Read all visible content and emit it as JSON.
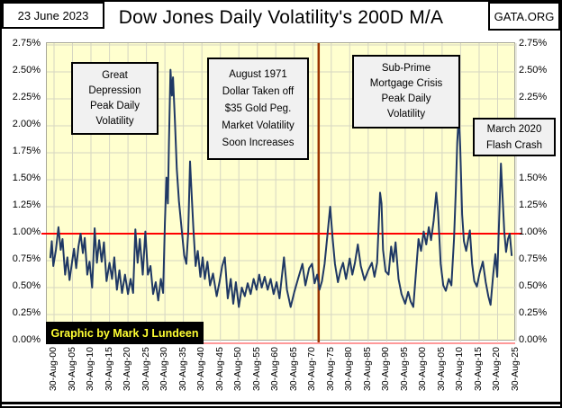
{
  "frame": {
    "date": "23 June 2023",
    "title": "Dow Jones Daily Volatility's 200D M/A",
    "site": "GATA.ORG"
  },
  "credit": "Graphic by Mark J Lundeen",
  "annotations": {
    "great_depression": "Great\nDepression\nPeak Daily\nVolatility",
    "august_1971": "August 1971\nDollar Taken off\n$35 Gold Peg.\nMarket Volatility\nSoon Increases",
    "subprime": "Sub-Prime\nMortgage Crisis\nPeak Daily\nVolatility",
    "march_2020": "March 2020\nFlash Crash"
  },
  "chart_data": {
    "type": "line",
    "title": "Dow Jones Daily Volatility's 200D M/A",
    "xlabel": "",
    "ylabel": "",
    "ylim": [
      0,
      2.75
    ],
    "y_tick_step": 0.25,
    "y_tick_labels": [
      "2.75%",
      "2.50%",
      "2.25%",
      "2.00%",
      "1.75%",
      "1.50%",
      "1.25%",
      "1.00%",
      "0.75%",
      "0.50%",
      "0.25%",
      "0.00%"
    ],
    "x_tick_years": [
      1900,
      1905,
      1910,
      1915,
      1920,
      1925,
      1930,
      1935,
      1940,
      1945,
      1950,
      1955,
      1960,
      1965,
      1970,
      1975,
      1980,
      1985,
      1990,
      1995,
      2000,
      2005,
      2010,
      2015,
      2020,
      2025
    ],
    "x_tick_labels": [
      "30-Aug-00",
      "30-Aug-05",
      "30-Aug-10",
      "30-Aug-15",
      "30-Aug-20",
      "30-Aug-25",
      "30-Aug-30",
      "30-Aug-35",
      "30-Aug-40",
      "30-Aug-45",
      "30-Aug-50",
      "30-Aug-55",
      "30-Aug-60",
      "30-Aug-65",
      "30-Aug-70",
      "30-Aug-75",
      "30-Aug-80",
      "30-Aug-85",
      "30-Aug-90",
      "30-Aug-95",
      "30-Aug-00",
      "30-Aug-05",
      "30-Aug-10",
      "30-Aug-15",
      "30-Aug-20",
      "30-Aug-25"
    ],
    "grid": true,
    "grid_color": "#D6D6C2",
    "plot_bg": "#FFFFCF",
    "ref_lines": {
      "horizontal": {
        "value": 1.0,
        "color": "#FF0000",
        "label": "1.00%"
      },
      "vertical": {
        "year": 1971.6,
        "color": "#993300",
        "label": "August 1971"
      }
    },
    "series": [
      {
        "name": "Dow Jones daily volatility 200-day moving average (%)",
        "color": "#1F3864",
        "points": [
          [
            1899.0,
            0.78
          ],
          [
            1899.4,
            0.93
          ],
          [
            1899.8,
            0.7
          ],
          [
            1900.5,
            0.85
          ],
          [
            1901.2,
            1.06
          ],
          [
            1901.8,
            0.85
          ],
          [
            1902.3,
            0.95
          ],
          [
            1903.0,
            0.62
          ],
          [
            1903.6,
            0.78
          ],
          [
            1904.2,
            0.57
          ],
          [
            1904.8,
            0.72
          ],
          [
            1905.4,
            0.86
          ],
          [
            1906.0,
            0.68
          ],
          [
            1906.6,
            0.88
          ],
          [
            1907.2,
            1.0
          ],
          [
            1907.8,
            0.82
          ],
          [
            1908.3,
            0.96
          ],
          [
            1909.0,
            0.62
          ],
          [
            1909.6,
            0.74
          ],
          [
            1910.3,
            0.5
          ],
          [
            1911.0,
            1.05
          ],
          [
            1911.6,
            0.73
          ],
          [
            1912.2,
            0.94
          ],
          [
            1912.9,
            0.74
          ],
          [
            1913.5,
            0.92
          ],
          [
            1914.2,
            0.56
          ],
          [
            1915.0,
            0.73
          ],
          [
            1915.7,
            0.58
          ],
          [
            1916.3,
            0.78
          ],
          [
            1917.0,
            0.48
          ],
          [
            1917.7,
            0.66
          ],
          [
            1918.4,
            0.45
          ],
          [
            1919.2,
            0.62
          ],
          [
            1920.0,
            0.44
          ],
          [
            1920.7,
            0.58
          ],
          [
            1921.4,
            0.45
          ],
          [
            1922.0,
            1.04
          ],
          [
            1922.6,
            0.73
          ],
          [
            1923.2,
            0.95
          ],
          [
            1924.0,
            0.62
          ],
          [
            1924.7,
            1.02
          ],
          [
            1925.4,
            0.62
          ],
          [
            1926.1,
            0.7
          ],
          [
            1926.8,
            0.44
          ],
          [
            1927.5,
            0.55
          ],
          [
            1928.2,
            0.38
          ],
          [
            1928.9,
            0.58
          ],
          [
            1929.5,
            0.45
          ],
          [
            1930.0,
            1.1
          ],
          [
            1930.4,
            1.52
          ],
          [
            1930.8,
            1.28
          ],
          [
            1931.1,
            1.85
          ],
          [
            1931.5,
            2.52
          ],
          [
            1931.9,
            2.28
          ],
          [
            1932.2,
            2.45
          ],
          [
            1932.7,
            2.05
          ],
          [
            1933.2,
            1.6
          ],
          [
            1933.8,
            1.3
          ],
          [
            1934.5,
            1.05
          ],
          [
            1935.2,
            0.8
          ],
          [
            1935.8,
            0.72
          ],
          [
            1936.3,
            1.02
          ],
          [
            1936.8,
            1.67
          ],
          [
            1937.2,
            1.38
          ],
          [
            1937.7,
            1.05
          ],
          [
            1938.3,
            0.7
          ],
          [
            1938.9,
            0.84
          ],
          [
            1939.6,
            0.6
          ],
          [
            1940.2,
            0.78
          ],
          [
            1940.8,
            0.58
          ],
          [
            1941.5,
            0.74
          ],
          [
            1942.2,
            0.52
          ],
          [
            1943.0,
            0.63
          ],
          [
            1944.0,
            0.42
          ],
          [
            1944.8,
            0.56
          ],
          [
            1945.5,
            0.7
          ],
          [
            1946.2,
            0.78
          ],
          [
            1947.0,
            0.4
          ],
          [
            1947.8,
            0.58
          ],
          [
            1948.5,
            0.35
          ],
          [
            1949.2,
            0.55
          ],
          [
            1950.0,
            0.32
          ],
          [
            1950.8,
            0.5
          ],
          [
            1951.6,
            0.42
          ],
          [
            1952.4,
            0.54
          ],
          [
            1953.2,
            0.44
          ],
          [
            1954.0,
            0.58
          ],
          [
            1954.8,
            0.48
          ],
          [
            1955.5,
            0.62
          ],
          [
            1956.2,
            0.5
          ],
          [
            1957.0,
            0.6
          ],
          [
            1957.8,
            0.48
          ],
          [
            1958.6,
            0.58
          ],
          [
            1959.4,
            0.44
          ],
          [
            1960.2,
            0.55
          ],
          [
            1961.0,
            0.4
          ],
          [
            1962.2,
            0.78
          ],
          [
            1963.0,
            0.48
          ],
          [
            1964.0,
            0.32
          ],
          [
            1965.0,
            0.46
          ],
          [
            1966.0,
            0.58
          ],
          [
            1967.2,
            0.72
          ],
          [
            1968.0,
            0.52
          ],
          [
            1969.0,
            0.68
          ],
          [
            1969.8,
            0.72
          ],
          [
            1970.5,
            0.54
          ],
          [
            1971.2,
            0.62
          ],
          [
            1971.8,
            0.48
          ],
          [
            1972.5,
            0.56
          ],
          [
            1973.2,
            0.72
          ],
          [
            1974.0,
            1.0
          ],
          [
            1974.7,
            1.25
          ],
          [
            1975.4,
            0.95
          ],
          [
            1976.0,
            0.72
          ],
          [
            1976.8,
            0.55
          ],
          [
            1977.5,
            0.66
          ],
          [
            1978.2,
            0.73
          ],
          [
            1979.0,
            0.58
          ],
          [
            1980.0,
            0.77
          ],
          [
            1980.7,
            0.62
          ],
          [
            1981.4,
            0.73
          ],
          [
            1982.2,
            0.9
          ],
          [
            1983.0,
            0.7
          ],
          [
            1984.0,
            0.57
          ],
          [
            1985.0,
            0.66
          ],
          [
            1986.0,
            0.73
          ],
          [
            1986.7,
            0.6
          ],
          [
            1987.4,
            0.73
          ],
          [
            1988.2,
            1.38
          ],
          [
            1988.6,
            1.28
          ],
          [
            1989.0,
            0.85
          ],
          [
            1989.7,
            0.65
          ],
          [
            1990.5,
            0.62
          ],
          [
            1991.2,
            0.88
          ],
          [
            1991.8,
            0.74
          ],
          [
            1992.4,
            0.92
          ],
          [
            1993.2,
            0.58
          ],
          [
            1994.0,
            0.44
          ],
          [
            1995.0,
            0.35
          ],
          [
            1995.8,
            0.46
          ],
          [
            1996.5,
            0.37
          ],
          [
            1997.2,
            0.32
          ],
          [
            1998.0,
            0.68
          ],
          [
            1998.6,
            0.95
          ],
          [
            1999.3,
            0.84
          ],
          [
            2000.0,
            1.02
          ],
          [
            2000.7,
            0.9
          ],
          [
            2001.4,
            1.06
          ],
          [
            2002.0,
            0.94
          ],
          [
            2002.7,
            1.12
          ],
          [
            2003.4,
            1.38
          ],
          [
            2003.9,
            1.2
          ],
          [
            2004.6,
            0.72
          ],
          [
            2005.3,
            0.52
          ],
          [
            2006.0,
            0.47
          ],
          [
            2006.8,
            0.58
          ],
          [
            2007.5,
            0.52
          ],
          [
            2008.2,
            0.95
          ],
          [
            2008.7,
            1.4
          ],
          [
            2009.1,
            1.85
          ],
          [
            2009.5,
            2.1
          ],
          [
            2009.9,
            1.8
          ],
          [
            2010.4,
            1.18
          ],
          [
            2010.9,
            0.93
          ],
          [
            2011.5,
            0.84
          ],
          [
            2012.1,
            0.96
          ],
          [
            2012.5,
            1.03
          ],
          [
            2013.1,
            0.72
          ],
          [
            2013.7,
            0.56
          ],
          [
            2014.4,
            0.51
          ],
          [
            2015.1,
            0.63
          ],
          [
            2016.0,
            0.74
          ],
          [
            2016.8,
            0.55
          ],
          [
            2017.5,
            0.42
          ],
          [
            2018.1,
            0.34
          ],
          [
            2018.8,
            0.62
          ],
          [
            2019.4,
            0.81
          ],
          [
            2019.9,
            0.6
          ],
          [
            2020.4,
            1.1
          ],
          [
            2020.9,
            1.65
          ],
          [
            2021.3,
            1.38
          ],
          [
            2021.8,
            1.02
          ],
          [
            2022.3,
            0.83
          ],
          [
            2022.8,
            0.95
          ],
          [
            2023.3,
            1.0
          ],
          [
            2023.8,
            0.8
          ]
        ]
      }
    ]
  }
}
